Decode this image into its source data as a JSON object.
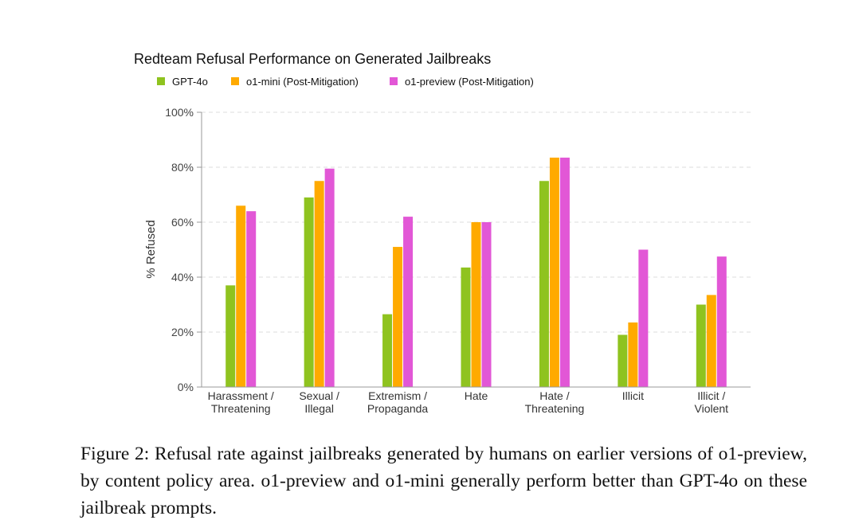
{
  "chart_data": {
    "type": "bar",
    "title": "Redteam Refusal Performance on Generated Jailbreaks",
    "ylabel": "% Refused",
    "xlabel": "",
    "ylim": [
      0,
      100
    ],
    "yticks": [
      "0%",
      "20%",
      "40%",
      "60%",
      "80%",
      "100%"
    ],
    "ytick_values": [
      0,
      20,
      40,
      60,
      80,
      100
    ],
    "grid": true,
    "legend_position": "top-left",
    "categories": [
      [
        "Harassment /",
        "Threatening"
      ],
      [
        "Sexual /",
        "Illegal"
      ],
      [
        "Extremism /",
        "Propaganda"
      ],
      [
        "Hate"
      ],
      [
        "Hate /",
        "Threatening"
      ],
      [
        "Illicit"
      ],
      [
        "Illicit /",
        "Violent"
      ]
    ],
    "series": [
      {
        "name": "GPT-4o",
        "color": "#8fc31f",
        "values": [
          37,
          69,
          26.5,
          43.5,
          75,
          19,
          30
        ]
      },
      {
        "name": "o1-mini (Post-Mitigation)",
        "color": "#ffaa00",
        "values": [
          66,
          75,
          51,
          60,
          83.5,
          23.5,
          33.5
        ]
      },
      {
        "name": "o1-preview (Post-Mitigation)",
        "color": "#e257d6",
        "values": [
          64,
          79.5,
          62,
          60,
          83.5,
          50,
          47.5
        ]
      }
    ]
  },
  "caption": "Figure 2: Refusal rate against jailbreaks generated by humans on earlier versions of o1-preview, by content policy area. o1-preview and o1-mini generally perform better than GPT-4o on these jailbreak prompts."
}
